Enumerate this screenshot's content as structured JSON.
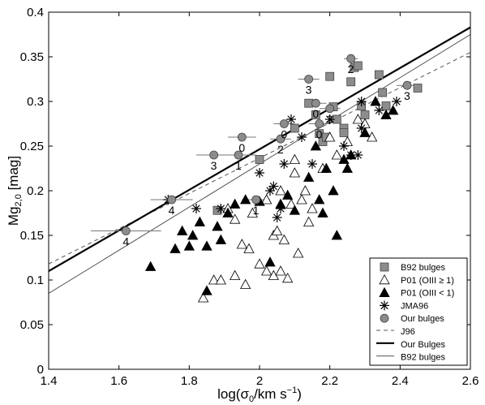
{
  "chart_data": {
    "type": "scatter",
    "xlabel_main": "log(σ",
    "xlabel_sub": "0",
    "xlabel_rest": "/km s",
    "xlabel_sup": "−1",
    "xlabel_end": ")",
    "ylabel_main": "Mg",
    "ylabel_sub": "2,0",
    "ylabel_rest": " [mag]",
    "xlim": [
      1.4,
      2.6
    ],
    "ylim": [
      0,
      0.4
    ],
    "xticks": [
      1.4,
      1.6,
      1.8,
      2,
      2.2,
      2.4,
      2.6
    ],
    "xtick_labels": [
      "1.4",
      "1.6",
      "1.8",
      "2",
      "2.2",
      "2.4",
      "2.6"
    ],
    "yticks": [
      0,
      0.05,
      0.1,
      0.15,
      0.2,
      0.25,
      0.3,
      0.35,
      0.4
    ],
    "ytick_labels": [
      "0",
      "0.05",
      "0.1",
      "0.15",
      "0.2",
      "0.25",
      "0.3",
      "0.35",
      "0.4"
    ],
    "legend_position": "bottom-right",
    "series": [
      {
        "name": "B92 bulges",
        "marker": "square",
        "color": "#8c8c8c",
        "points": [
          [
            1.88,
            0.178
          ],
          [
            2.0,
            0.235
          ],
          [
            2.1,
            0.27
          ],
          [
            2.14,
            0.298
          ],
          [
            2.16,
            0.285
          ],
          [
            2.17,
            0.264
          ],
          [
            2.18,
            0.255
          ],
          [
            2.19,
            0.26
          ],
          [
            2.2,
            0.328
          ],
          [
            2.21,
            0.294
          ],
          [
            2.22,
            0.28
          ],
          [
            2.24,
            0.27
          ],
          [
            2.24,
            0.265
          ],
          [
            2.26,
            0.322
          ],
          [
            2.27,
            0.338
          ],
          [
            2.28,
            0.34
          ],
          [
            2.29,
            0.295
          ],
          [
            2.3,
            0.285
          ],
          [
            2.34,
            0.33
          ],
          [
            2.35,
            0.31
          ],
          [
            2.36,
            0.295
          ],
          [
            2.45,
            0.315
          ]
        ]
      },
      {
        "name": "P01 (OIII ≥ 1)",
        "marker": "triangle-open",
        "color": "#ffffff",
        "points": [
          [
            1.84,
            0.08
          ],
          [
            1.87,
            0.1
          ],
          [
            1.89,
            0.1
          ],
          [
            1.93,
            0.105
          ],
          [
            1.96,
            0.095
          ],
          [
            1.97,
            0.135
          ],
          [
            2.0,
            0.118
          ],
          [
            2.02,
            0.11
          ],
          [
            2.04,
            0.105
          ],
          [
            2.06,
            0.11
          ],
          [
            2.08,
            0.102
          ],
          [
            1.91,
            0.18
          ],
          [
            1.93,
            0.168
          ],
          [
            1.95,
            0.14
          ],
          [
            1.98,
            0.175
          ],
          [
            2.02,
            0.19
          ],
          [
            2.04,
            0.15
          ],
          [
            2.05,
            0.155
          ],
          [
            2.06,
            0.2
          ],
          [
            2.09,
            0.185
          ],
          [
            2.1,
            0.22
          ],
          [
            2.11,
            0.13
          ],
          [
            2.12,
            0.19
          ],
          [
            2.14,
            0.165
          ],
          [
            2.15,
            0.18
          ],
          [
            2.18,
            0.225
          ],
          [
            2.2,
            0.26
          ],
          [
            2.22,
            0.24
          ],
          [
            2.25,
            0.255
          ],
          [
            2.28,
            0.28
          ],
          [
            2.3,
            0.275
          ],
          [
            2.32,
            0.26
          ],
          [
            2.1,
            0.235
          ],
          [
            2.07,
            0.145
          ],
          [
            2.13,
            0.2
          ]
        ]
      },
      {
        "name": "P01 (OIII < 1)",
        "marker": "triangle-filled",
        "color": "#000000",
        "points": [
          [
            1.69,
            0.115
          ],
          [
            1.76,
            0.135
          ],
          [
            1.78,
            0.155
          ],
          [
            1.8,
            0.138
          ],
          [
            1.81,
            0.15
          ],
          [
            1.83,
            0.165
          ],
          [
            1.85,
            0.138
          ],
          [
            1.85,
            0.088
          ],
          [
            1.88,
            0.16
          ],
          [
            1.89,
            0.145
          ],
          [
            1.91,
            0.175
          ],
          [
            1.93,
            0.185
          ],
          [
            1.96,
            0.19
          ],
          [
            2.0,
            0.188
          ],
          [
            2.03,
            0.12
          ],
          [
            2.06,
            0.185
          ],
          [
            2.08,
            0.195
          ],
          [
            2.1,
            0.178
          ],
          [
            2.14,
            0.215
          ],
          [
            2.17,
            0.19
          ],
          [
            2.18,
            0.175
          ],
          [
            2.19,
            0.225
          ],
          [
            2.21,
            0.2
          ],
          [
            2.22,
            0.15
          ],
          [
            2.24,
            0.235
          ],
          [
            2.26,
            0.24
          ],
          [
            2.3,
            0.265
          ],
          [
            2.33,
            0.3
          ],
          [
            2.36,
            0.285
          ],
          [
            2.38,
            0.29
          ],
          [
            2.16,
            0.25
          ],
          [
            2.25,
            0.225
          ]
        ]
      },
      {
        "name": "JMA96",
        "marker": "asterisk",
        "color": "#000000",
        "points": [
          [
            1.74,
            0.19
          ],
          [
            1.82,
            0.18
          ],
          [
            1.89,
            0.18
          ],
          [
            2.0,
            0.22
          ],
          [
            2.03,
            0.2
          ],
          [
            2.04,
            0.205
          ],
          [
            2.05,
            0.17
          ],
          [
            2.07,
            0.23
          ],
          [
            2.09,
            0.28
          ],
          [
            2.15,
            0.23
          ],
          [
            2.2,
            0.28
          ],
          [
            2.24,
            0.25
          ],
          [
            2.26,
            0.24
          ],
          [
            2.28,
            0.24
          ],
          [
            2.29,
            0.27
          ],
          [
            2.29,
            0.3
          ],
          [
            2.34,
            0.29
          ],
          [
            2.39,
            0.3
          ],
          [
            2.06,
            0.18
          ],
          [
            2.12,
            0.26
          ]
        ]
      },
      {
        "name": "Our bulges",
        "marker": "circle",
        "color": "#8c8c8c",
        "points": [
          {
            "x": 1.62,
            "y": 0.155,
            "xerr": 0.1,
            "label": "4"
          },
          {
            "x": 1.75,
            "y": 0.19,
            "xerr": 0.06,
            "label": "4"
          },
          {
            "x": 1.87,
            "y": 0.24,
            "xerr": 0.05,
            "label": "3"
          },
          {
            "x": 1.94,
            "y": 0.24,
            "xerr": 0.05,
            "label": "1"
          },
          {
            "x": 1.95,
            "y": 0.26,
            "xerr": 0.04,
            "label": "0"
          },
          {
            "x": 1.99,
            "y": 0.19,
            "xerr": 0.04,
            "label": "1"
          },
          {
            "x": 2.06,
            "y": 0.258,
            "xerr": 0.03,
            "label": "2"
          },
          {
            "x": 2.07,
            "y": 0.275,
            "xerr": 0.03,
            "label": "0"
          },
          {
            "x": 2.14,
            "y": 0.325,
            "xerr": 0.03,
            "label": "3"
          },
          {
            "x": 2.16,
            "y": 0.298,
            "xerr": 0.03,
            "label": "0"
          },
          {
            "x": 2.17,
            "y": 0.275,
            "xerr": 0.03,
            "label": "0"
          },
          {
            "x": 2.2,
            "y": 0.292,
            "xerr": 0.03,
            "label": "3"
          },
          {
            "x": 2.26,
            "y": 0.348,
            "xerr": 0.02,
            "label": "2"
          },
          {
            "x": 2.42,
            "y": 0.318,
            "xerr": 0.03,
            "label": "3"
          }
        ]
      }
    ],
    "lines": [
      {
        "name": "J96",
        "style": "dashed",
        "color": "#555555",
        "x": [
          1.4,
          2.6
        ],
        "y": [
          0.118,
          0.355
        ]
      },
      {
        "name": "Our Bulges",
        "style": "solid-thick",
        "color": "#000000",
        "x": [
          1.4,
          2.6
        ],
        "y": [
          0.11,
          0.383
        ]
      },
      {
        "name": "B92 bulges",
        "style": "solid-thin",
        "color": "#555555",
        "x": [
          1.4,
          2.6
        ],
        "y": [
          0.085,
          0.375
        ]
      }
    ]
  }
}
